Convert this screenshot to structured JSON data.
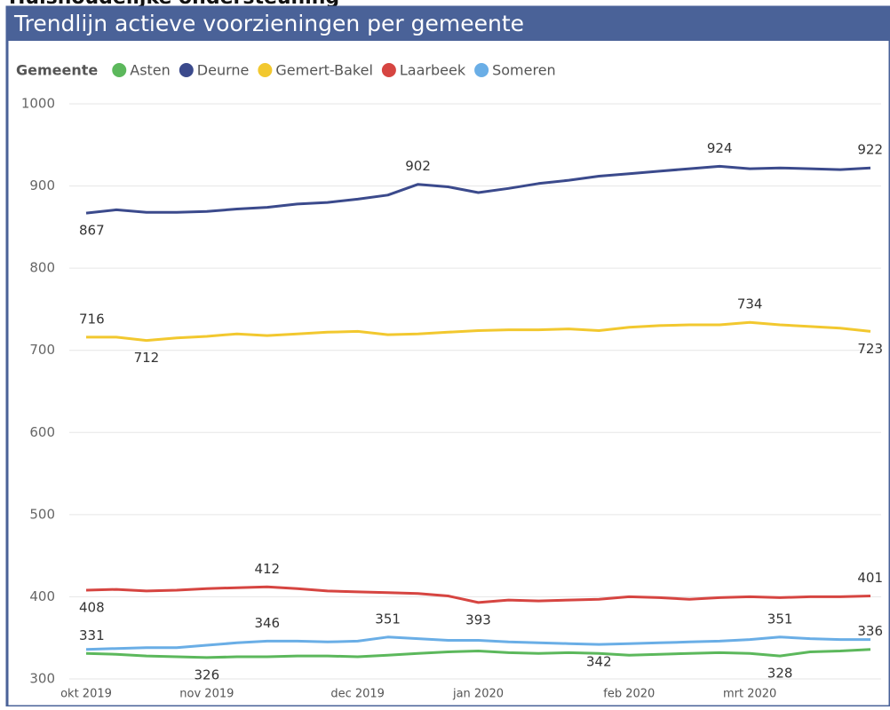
{
  "page_header": "Huishoudelijke ondersteuning",
  "chart_data": {
    "type": "line",
    "title": "Trendlijn actieve voorzieningen per gemeente",
    "legend_title": "Gemeente",
    "legend": "top-left",
    "grid": true,
    "categories": [
      "okt 2019",
      null,
      null,
      null,
      "nov 2019",
      null,
      null,
      null,
      null,
      "dec 2019",
      null,
      null,
      null,
      "jan 2020",
      null,
      null,
      null,
      null,
      "feb 2020",
      null,
      null,
      null,
      "mrt 2020",
      null,
      null,
      null,
      null
    ],
    "ylim": [
      300,
      1000
    ],
    "yticks": [
      300,
      400,
      500,
      600,
      700,
      800,
      900,
      1000
    ],
    "series": [
      {
        "name": "Asten",
        "color": "#5cb85c",
        "values": [
          331,
          330,
          328,
          327,
          326,
          327,
          327,
          328,
          328,
          327,
          329,
          331,
          333,
          334,
          332,
          331,
          332,
          331,
          329,
          330,
          331,
          332,
          331,
          328,
          333,
          334,
          336
        ],
        "value_labels": [
          "331",
          null,
          null,
          null,
          "326",
          null,
          null,
          null,
          null,
          null,
          null,
          null,
          null,
          null,
          null,
          null,
          null,
          null,
          null,
          null,
          null,
          null,
          null,
          "328",
          null,
          null,
          "336"
        ]
      },
      {
        "name": "Deurne",
        "color": "#3b4a8c",
        "values": [
          867,
          871,
          868,
          868,
          869,
          872,
          874,
          878,
          880,
          884,
          889,
          902,
          899,
          892,
          897,
          903,
          907,
          912,
          915,
          918,
          921,
          924,
          921,
          922,
          921,
          920,
          922
        ],
        "value_labels": [
          "867",
          null,
          null,
          null,
          null,
          null,
          null,
          null,
          null,
          null,
          null,
          "902",
          null,
          null,
          null,
          null,
          null,
          null,
          null,
          null,
          null,
          "924",
          null,
          null,
          null,
          null,
          "922"
        ]
      },
      {
        "name": "Gemert-Bakel",
        "color": "#f2c82f",
        "values": [
          716,
          716,
          712,
          715,
          717,
          720,
          718,
          720,
          722,
          723,
          719,
          720,
          722,
          724,
          725,
          725,
          726,
          724,
          728,
          730,
          731,
          731,
          734,
          731,
          729,
          727,
          723
        ],
        "value_labels": [
          "716",
          null,
          "712",
          null,
          null,
          null,
          null,
          null,
          null,
          null,
          null,
          null,
          null,
          null,
          null,
          null,
          null,
          null,
          null,
          null,
          null,
          null,
          "734",
          null,
          null,
          null,
          "723"
        ]
      },
      {
        "name": "Laarbeek",
        "color": "#d64541",
        "values": [
          408,
          409,
          407,
          408,
          410,
          411,
          412,
          410,
          407,
          406,
          405,
          404,
          401,
          393,
          396,
          395,
          396,
          397,
          400,
          399,
          397,
          399,
          400,
          399,
          400,
          400,
          401
        ],
        "value_labels": [
          "408",
          null,
          null,
          null,
          null,
          null,
          "412",
          null,
          null,
          null,
          null,
          null,
          null,
          "393",
          null,
          null,
          null,
          null,
          null,
          null,
          null,
          null,
          null,
          null,
          null,
          null,
          "401"
        ]
      },
      {
        "name": "Someren",
        "color": "#6aaee6",
        "values": [
          336,
          337,
          338,
          338,
          341,
          344,
          346,
          346,
          345,
          346,
          351,
          349,
          347,
          347,
          345,
          344,
          343,
          342,
          343,
          344,
          345,
          346,
          348,
          351,
          349,
          348,
          348
        ],
        "value_labels": [
          null,
          null,
          null,
          null,
          null,
          null,
          "346",
          null,
          null,
          null,
          "351",
          null,
          null,
          null,
          null,
          null,
          null,
          "342",
          null,
          null,
          null,
          null,
          null,
          "351",
          null,
          null,
          null
        ]
      }
    ]
  }
}
